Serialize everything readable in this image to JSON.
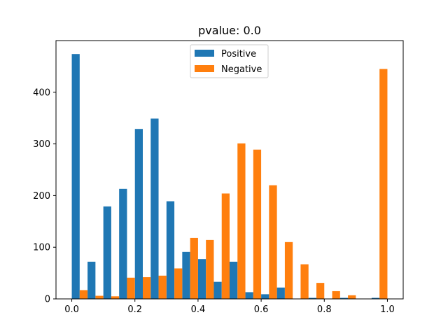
{
  "chart_data": {
    "type": "bar",
    "title": "pvalue: 0.0",
    "xlabel": "",
    "ylabel": "",
    "xlim": [
      -0.05,
      1.05
    ],
    "ylim": [
      0,
      500
    ],
    "grid": false,
    "legend_position": "top-center",
    "bin_edges": [
      0.0,
      0.05,
      0.1,
      0.15,
      0.2,
      0.25,
      0.3,
      0.35,
      0.4,
      0.45,
      0.5,
      0.55,
      0.6,
      0.65,
      0.7,
      0.75,
      0.8,
      0.85,
      0.9,
      0.95,
      1.0
    ],
    "x_ticks": [
      0.0,
      0.2,
      0.4,
      0.6,
      0.8,
      1.0
    ],
    "x_tick_labels": [
      "0.0",
      "0.2",
      "0.4",
      "0.6",
      "0.8",
      "1.0"
    ],
    "y_ticks": [
      0,
      100,
      200,
      300,
      400
    ],
    "y_tick_labels": [
      "0",
      "100",
      "200",
      "300",
      "400"
    ],
    "series": [
      {
        "name": "Positive",
        "color": "#1f77b4",
        "values": [
          474,
          72,
          179,
          213,
          329,
          349,
          189,
          91,
          77,
          33,
          72,
          13,
          9,
          22,
          0,
          2,
          0,
          2,
          0,
          2
        ]
      },
      {
        "name": "Negative",
        "color": "#ff7f0e",
        "values": [
          17,
          6,
          5,
          41,
          42,
          45,
          59,
          118,
          114,
          204,
          301,
          289,
          220,
          110,
          67,
          31,
          15,
          7,
          0,
          445
        ]
      }
    ]
  }
}
